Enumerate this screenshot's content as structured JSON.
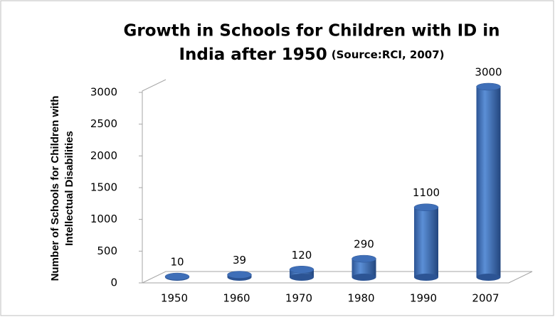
{
  "chart_data": {
    "type": "bar",
    "title": "Growth in Schools for Children with ID in",
    "title_line2": "India after 1950",
    "subtitle": "(Source:RCI, 2007)",
    "y_label": [
      "Number of Schools for Children with",
      "Intellectual Disabilities"
    ],
    "categories": [
      "1950",
      "1960",
      "1970",
      "1980",
      "1990",
      "2007"
    ],
    "values": [
      10,
      39,
      120,
      290,
      1100,
      3000
    ],
    "color": "#3f6fb8",
    "ylim": [
      0,
      3000
    ],
    "yticks": [
      0,
      500,
      1000,
      1500,
      2000,
      2500,
      3000
    ],
    "grid": false
  }
}
